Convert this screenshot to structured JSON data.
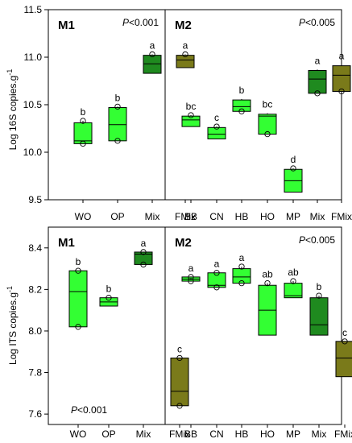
{
  "chart_data": [
    {
      "type": "box",
      "panel": "top",
      "ylabel": "Log 16S copies.g",
      "ylabel_superscript": "-1",
      "ylim": [
        9.5,
        11.5
      ],
      "yticks": [
        "9.5",
        "10.0",
        "10.5",
        "11.0",
        "11.5"
      ],
      "subpanels": [
        {
          "label": "M1",
          "pvalue_prefix": "P",
          "pvalue_text": "<0.001",
          "pvalue_position": "top-right",
          "categories": [
            "WO",
            "OP",
            "Mix",
            "FMix"
          ],
          "boxes": [
            {
              "q1": 10.09,
              "median": 10.12,
              "q3": 10.31,
              "min": 10.09,
              "max": 10.33,
              "outliers": [
                10.09,
                10.33
              ],
              "letter": "b",
              "color": "#33ff33"
            },
            {
              "q1": 10.12,
              "median": 10.29,
              "q3": 10.47,
              "min": 10.12,
              "max": 10.48,
              "outliers": [
                10.12,
                10.48
              ],
              "letter": "b",
              "color": "#33ff33"
            },
            {
              "q1": 10.83,
              "median": 10.93,
              "q3": 11.02,
              "min": 10.83,
              "max": 11.03,
              "outliers": [
                11.03
              ],
              "letter": "a",
              "color": "#1f8a1f"
            },
            {
              "q1": 10.89,
              "median": 10.97,
              "q3": 11.02,
              "min": 10.89,
              "max": 11.03,
              "outliers": [
                11.03
              ],
              "letter": "a",
              "color": "#7a7a1a"
            }
          ]
        },
        {
          "label": "M2",
          "pvalue_prefix": "P",
          "pvalue_text": "<0.005",
          "pvalue_position": "top-right",
          "categories": [
            "BB",
            "CN",
            "HB",
            "HO",
            "MP",
            "Mix",
            "FMix"
          ],
          "boxes": [
            {
              "q1": 10.27,
              "median": 10.34,
              "q3": 10.38,
              "min": 10.27,
              "max": 10.39,
              "outliers": [
                10.39
              ],
              "letter": "bc",
              "color": "#33ff33"
            },
            {
              "q1": 10.14,
              "median": 10.19,
              "q3": 10.26,
              "min": 10.14,
              "max": 10.27,
              "outliers": [
                10.27
              ],
              "letter": "c",
              "color": "#33ff33"
            },
            {
              "q1": 10.43,
              "median": 10.48,
              "q3": 10.55,
              "min": 10.43,
              "max": 10.56,
              "outliers": [
                10.43
              ],
              "letter": "b",
              "color": "#33ff33"
            },
            {
              "q1": 10.19,
              "median": 10.38,
              "q3": 10.4,
              "min": 10.19,
              "max": 10.41,
              "outliers": [
                10.19
              ],
              "letter": "bc",
              "color": "#33ff33"
            },
            {
              "q1": 9.58,
              "median": 9.7,
              "q3": 9.82,
              "min": 9.58,
              "max": 9.83,
              "outliers": [
                9.83
              ],
              "letter": "d",
              "color": "#33ff33"
            },
            {
              "q1": 10.62,
              "median": 10.77,
              "q3": 10.86,
              "min": 10.62,
              "max": 10.87,
              "outliers": [
                10.62
              ],
              "letter": "a",
              "color": "#1f8a1f"
            },
            {
              "q1": 10.64,
              "median": 10.81,
              "q3": 10.91,
              "min": 10.64,
              "max": 10.92,
              "outliers": [
                10.64
              ],
              "letter": "a",
              "color": "#7a7a1a"
            }
          ]
        }
      ]
    },
    {
      "type": "box",
      "panel": "bottom",
      "ylabel": "Log ITS copies.g",
      "ylabel_superscript": "-1",
      "ylim": [
        7.55,
        8.5
      ],
      "yticks": [
        "7.6",
        "7.8",
        "8.0",
        "8.2",
        "8.4"
      ],
      "subpanels": [
        {
          "label": "M1",
          "pvalue_prefix": "P",
          "pvalue_text": "<0.001",
          "pvalue_position": "bottom-left",
          "categories": [
            "WO",
            "OP",
            "Mix",
            "FMix"
          ],
          "boxes": [
            {
              "q1": 8.02,
              "median": 8.19,
              "q3": 8.29,
              "min": 8.02,
              "max": 8.29,
              "outliers": [
                8.02,
                8.29
              ],
              "letter": "b",
              "color": "#33ff33"
            },
            {
              "q1": 8.12,
              "median": 8.14,
              "q3": 8.16,
              "min": 8.12,
              "max": 8.16,
              "outliers": [
                8.16
              ],
              "letter": "b",
              "color": "#33ff33"
            },
            {
              "q1": 8.32,
              "median": 8.37,
              "q3": 8.38,
              "min": 8.32,
              "max": 8.38,
              "outliers": [
                8.32,
                8.38
              ],
              "letter": "a",
              "color": "#1f8a1f"
            },
            {
              "q1": 7.64,
              "median": 7.71,
              "q3": 7.87,
              "min": 7.64,
              "max": 7.87,
              "outliers": [
                7.64,
                7.87
              ],
              "letter": "c",
              "color": "#7a7a1a"
            }
          ]
        },
        {
          "label": "M2",
          "pvalue_prefix": "P",
          "pvalue_text": "<0.005",
          "pvalue_position": "top-right",
          "categories": [
            "BB",
            "CN",
            "HB",
            "HO",
            "MP",
            "Mix",
            "FMix"
          ],
          "boxes": [
            {
              "q1": 8.24,
              "median": 8.25,
              "q3": 8.26,
              "min": 8.24,
              "max": 8.26,
              "outliers": [
                8.24,
                8.26
              ],
              "letter": "a",
              "color": "#33ff33"
            },
            {
              "q1": 8.21,
              "median": 8.22,
              "q3": 8.28,
              "min": 8.21,
              "max": 8.28,
              "outliers": [
                8.21,
                8.28
              ],
              "letter": "a",
              "color": "#33ff33"
            },
            {
              "q1": 8.23,
              "median": 8.26,
              "q3": 8.3,
              "min": 8.23,
              "max": 8.31,
              "outliers": [
                8.23,
                8.31
              ],
              "letter": "a",
              "color": "#33ff33"
            },
            {
              "q1": 7.98,
              "median": 8.1,
              "q3": 8.22,
              "min": 7.98,
              "max": 8.23,
              "outliers": [
                8.23
              ],
              "letter": "ab",
              "color": "#33ff33"
            },
            {
              "q1": 8.16,
              "median": 8.17,
              "q3": 8.23,
              "min": 8.16,
              "max": 8.24,
              "outliers": [
                8.24
              ],
              "letter": "ab",
              "color": "#33ff33"
            },
            {
              "q1": 7.98,
              "median": 8.03,
              "q3": 8.16,
              "min": 7.98,
              "max": 8.17,
              "outliers": [
                8.17
              ],
              "letter": "b",
              "color": "#1f8a1f"
            },
            {
              "q1": 7.78,
              "median": 7.87,
              "q3": 7.95,
              "min": 7.78,
              "max": 7.95,
              "outliers": [
                7.95
              ],
              "letter": "c",
              "color": "#7a7a1a"
            }
          ]
        }
      ]
    }
  ]
}
